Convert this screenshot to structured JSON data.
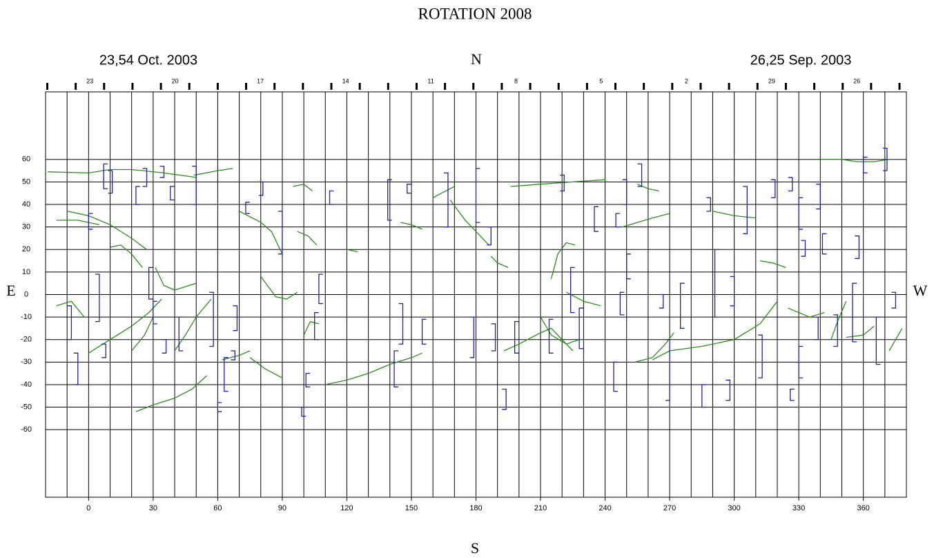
{
  "chart_data": {
    "type": "synoptic-map",
    "title": "ROTATION 2008",
    "start_date": "23,54 Oct. 2003",
    "end_date": "26,25 Sep. 2003",
    "north_label": "N",
    "south_label": "S",
    "east_label": "E",
    "west_label": "W",
    "xlim": [
      -20,
      380
    ],
    "ylim": [
      -90,
      90
    ],
    "xticks": [
      0,
      30,
      60,
      90,
      120,
      150,
      180,
      210,
      240,
      270,
      300,
      330,
      360
    ],
    "xgrid": [
      -10,
      0,
      10,
      20,
      30,
      40,
      50,
      60,
      70,
      80,
      90,
      100,
      110,
      120,
      130,
      140,
      150,
      160,
      170,
      180,
      190,
      200,
      210,
      220,
      230,
      240,
      250,
      260,
      270,
      280,
      290,
      300,
      310,
      320,
      330,
      340,
      350,
      360,
      370
    ],
    "yticks": [
      -60,
      -50,
      -40,
      -30,
      -20,
      -10,
      0,
      10,
      20,
      30,
      40,
      50,
      60
    ],
    "grid": true,
    "day_ticks": [
      -19.2,
      -6,
      7.2,
      20.4,
      33.6,
      46.8,
      60,
      73.2,
      86.4,
      99.6,
      112.8,
      126,
      139.2,
      152.4,
      165.6,
      178.8,
      192,
      205.2,
      218.4,
      231.6,
      244.8,
      258,
      271.2,
      284.4,
      297.6,
      310.8,
      324,
      337.2,
      350.4,
      363.6,
      376.8
    ],
    "day_labels": [
      {
        "value": 0.6,
        "label": "23"
      },
      {
        "value": 40.2,
        "label": "20"
      },
      {
        "value": 79.8,
        "label": "17"
      },
      {
        "value": 119.4,
        "label": "14"
      },
      {
        "value": 159,
        "label": "11"
      },
      {
        "value": 198.6,
        "label": "8"
      },
      {
        "value": 238.2,
        "label": "5"
      },
      {
        "value": 277.8,
        "label": "2"
      },
      {
        "value": 317.4,
        "label": "29"
      },
      {
        "value": 357,
        "label": "26"
      }
    ],
    "filament_color": "#2e8b1e",
    "bracket_color": "#1f1fa8",
    "filaments": [
      {
        "x": [
          -19,
          0,
          10,
          20,
          35,
          50
        ],
        "y": [
          54.5,
          54,
          55.5,
          55.5,
          54,
          52
        ]
      },
      {
        "x": [
          49,
          60,
          67
        ],
        "y": [
          53,
          55,
          56
        ]
      },
      {
        "x": [
          -10,
          0,
          10,
          20,
          27
        ],
        "y": [
          37,
          35,
          31,
          25,
          20
        ]
      },
      {
        "x": [
          -15,
          -5,
          5
        ],
        "y": [
          33,
          33,
          31
        ]
      },
      {
        "x": [
          10,
          15,
          20,
          25
        ],
        "y": [
          21,
          22,
          18,
          12
        ]
      },
      {
        "x": [
          0,
          10,
          20,
          28,
          34
        ],
        "y": [
          -26,
          -20,
          -14,
          -8,
          -2
        ]
      },
      {
        "x": [
          20,
          26,
          30
        ],
        "y": [
          -25,
          -18,
          -10
        ]
      },
      {
        "x": [
          31,
          35,
          40,
          50
        ],
        "y": [
          12,
          4,
          2,
          5
        ]
      },
      {
        "x": [
          40,
          45,
          50,
          57
        ],
        "y": [
          -25,
          -18,
          -10,
          -2
        ]
      },
      {
        "x": [
          22,
          30,
          40,
          48,
          55
        ],
        "y": [
          -52,
          -49,
          -46,
          -42,
          -36
        ]
      },
      {
        "x": [
          -15,
          -8,
          -2
        ],
        "y": [
          -5,
          -3,
          -10
        ]
      },
      {
        "x": [
          70,
          80,
          85,
          90
        ],
        "y": [
          37,
          32,
          28,
          18
        ]
      },
      {
        "x": [
          80,
          87,
          92,
          97
        ],
        "y": [
          8,
          -1,
          -2,
          1
        ]
      },
      {
        "x": [
          97,
          102,
          106
        ],
        "y": [
          28,
          26,
          22
        ]
      },
      {
        "x": [
          100,
          103,
          107
        ],
        "y": [
          -18,
          -12,
          -13
        ]
      },
      {
        "x": [
          110,
          120,
          130,
          140,
          150,
          155
        ],
        "y": [
          -40,
          -38,
          -35,
          -31,
          -28,
          -26
        ]
      },
      {
        "x": [
          62,
          70,
          75
        ],
        "y": [
          -29,
          -27,
          -25
        ]
      },
      {
        "x": [
          75,
          82,
          90
        ],
        "y": [
          -28,
          -33,
          -37
        ]
      },
      {
        "x": [
          120,
          125
        ],
        "y": [
          20,
          19
        ]
      },
      {
        "x": [
          145,
          150,
          155
        ],
        "y": [
          32,
          31,
          29
        ]
      },
      {
        "x": [
          168,
          175,
          180,
          186
        ],
        "y": [
          42,
          33,
          28,
          22
        ]
      },
      {
        "x": [
          187,
          190,
          195
        ],
        "y": [
          17,
          14,
          12
        ]
      },
      {
        "x": [
          193,
          200,
          210,
          215,
          218,
          222,
          225
        ],
        "y": [
          -25,
          -22,
          -17,
          -15,
          -18,
          -22,
          -25
        ]
      },
      {
        "x": [
          210,
          215,
          222,
          228
        ],
        "y": [
          -10,
          -18,
          -22,
          -20
        ]
      },
      {
        "x": [
          215,
          218,
          222,
          226
        ],
        "y": [
          7,
          18,
          23,
          22
        ]
      },
      {
        "x": [
          222,
          230,
          238
        ],
        "y": [
          1,
          -3,
          -5
        ]
      },
      {
        "x": [
          196,
          210,
          225,
          240
        ],
        "y": [
          48,
          49,
          50,
          51
        ]
      },
      {
        "x": [
          248,
          255,
          262,
          270
        ],
        "y": [
          30,
          32,
          34,
          36
        ]
      },
      {
        "x": [
          262,
          270,
          285,
          300,
          312,
          320
        ],
        "y": [
          -29,
          -25,
          -23,
          -20,
          -13,
          -3
        ]
      },
      {
        "x": [
          254,
          262,
          268,
          272
        ],
        "y": [
          -30,
          -28,
          -22,
          -17
        ]
      },
      {
        "x": [
          340,
          350,
          357,
          365,
          372
        ],
        "y": [
          60,
          60,
          59,
          59,
          60
        ]
      },
      {
        "x": [
          352,
          360,
          365
        ],
        "y": [
          -19,
          -18,
          -14
        ]
      },
      {
        "x": [
          372,
          378
        ],
        "y": [
          -25,
          -15
        ]
      },
      {
        "x": [
          345,
          348,
          352
        ],
        "y": [
          -20,
          -12,
          -3
        ]
      },
      {
        "x": [
          325,
          335,
          342
        ],
        "y": [
          -6,
          -10,
          -8
        ]
      },
      {
        "x": [
          312,
          318,
          324
        ],
        "y": [
          15,
          14,
          12
        ]
      },
      {
        "x": [
          290,
          300,
          310
        ],
        "y": [
          37,
          35,
          34
        ]
      },
      {
        "x": [
          255,
          260,
          265
        ],
        "y": [
          49,
          47,
          46
        ]
      },
      {
        "x": [
          160,
          170
        ],
        "y": [
          43,
          48
        ]
      },
      {
        "x": [
          95,
          100,
          104
        ],
        "y": [
          48,
          49,
          46
        ]
      }
    ],
    "brackets": [
      {
        "x": 0,
        "y1": 29,
        "y2": 36,
        "spine": "left"
      },
      {
        "x": 7,
        "y1": 47,
        "y2": 58,
        "spine": "left"
      },
      {
        "x": 11,
        "y1": 45,
        "y2": 55,
        "spine": "right"
      },
      {
        "x": 22,
        "y1": 40,
        "y2": 48,
        "spine": "left"
      },
      {
        "x": 27,
        "y1": 48,
        "y2": 56,
        "spine": "right"
      },
      {
        "x": 35,
        "y1": 52,
        "y2": 57,
        "spine": "right"
      },
      {
        "x": 38,
        "y1": 42,
        "y2": 48,
        "spine": "left"
      },
      {
        "x": 50,
        "y1": 40,
        "y2": 57,
        "spine": "right"
      },
      {
        "x": -8,
        "y1": -20,
        "y2": -5,
        "spine": "right"
      },
      {
        "x": 5,
        "y1": -12,
        "y2": 9,
        "spine": "right"
      },
      {
        "x": -5,
        "y1": -40,
        "y2": -26,
        "spine": "right"
      },
      {
        "x": 8,
        "y1": -28,
        "y2": -22,
        "spine": "right"
      },
      {
        "x": 28,
        "y1": -2,
        "y2": 12,
        "spine": "left"
      },
      {
        "x": 30,
        "y1": -13,
        "y2": -3,
        "spine": "left"
      },
      {
        "x": 36,
        "y1": -26,
        "y2": -20,
        "spine": "right"
      },
      {
        "x": 42,
        "y1": -25,
        "y2": -10,
        "spine": "left"
      },
      {
        "x": 58,
        "y1": -23,
        "y2": 1,
        "spine": "right"
      },
      {
        "x": 69,
        "y1": -16,
        "y2": -5,
        "spine": "right"
      },
      {
        "x": 63,
        "y1": -43,
        "y2": -28,
        "spine": "left"
      },
      {
        "x": 68,
        "y1": -29,
        "y2": -25,
        "spine": "right"
      },
      {
        "x": 60,
        "y1": -52,
        "y2": -48,
        "spine": "left"
      },
      {
        "x": 73,
        "y1": 36,
        "y2": 41,
        "spine": "left"
      },
      {
        "x": 90,
        "y1": 18,
        "y2": 37,
        "spine": "right"
      },
      {
        "x": 81,
        "y1": 44,
        "y2": 50,
        "spine": "right"
      },
      {
        "x": 107,
        "y1": -4,
        "y2": 9,
        "spine": "left"
      },
      {
        "x": 105,
        "y1": -20,
        "y2": -8,
        "spine": "left"
      },
      {
        "x": 101,
        "y1": -41,
        "y2": -35,
        "spine": "left"
      },
      {
        "x": 99,
        "y1": -54,
        "y2": -50,
        "spine": "left"
      },
      {
        "x": 112,
        "y1": 40,
        "y2": 46,
        "spine": "left"
      },
      {
        "x": 139,
        "y1": 33,
        "y2": 51,
        "spine": "left"
      },
      {
        "x": 148,
        "y1": 45,
        "y2": 49,
        "spine": "left"
      },
      {
        "x": 146,
        "y1": -22,
        "y2": -4,
        "spine": "right"
      },
      {
        "x": 142,
        "y1": -41,
        "y2": -25,
        "spine": "left"
      },
      {
        "x": 155,
        "y1": -22,
        "y2": -11,
        "spine": "left"
      },
      {
        "x": 167,
        "y1": 30,
        "y2": 54,
        "spine": "right"
      },
      {
        "x": 179,
        "y1": -28,
        "y2": -10,
        "spine": "right"
      },
      {
        "x": 180,
        "y1": 32,
        "y2": 56,
        "spine": "left"
      },
      {
        "x": 187,
        "y1": 22,
        "y2": 30,
        "spine": "right"
      },
      {
        "x": 189,
        "y1": -25,
        "y2": -13,
        "spine": "right"
      },
      {
        "x": 194,
        "y1": -51,
        "y2": -42,
        "spine": "right"
      },
      {
        "x": 198,
        "y1": -26,
        "y2": -12,
        "spine": "left"
      },
      {
        "x": 221,
        "y1": 46,
        "y2": 53,
        "spine": "right"
      },
      {
        "x": 214,
        "y1": -26,
        "y2": -11,
        "spine": "left"
      },
      {
        "x": 228,
        "y1": -24,
        "y2": -6,
        "spine": "left"
      },
      {
        "x": 224,
        "y1": -8,
        "y2": 12,
        "spine": "left"
      },
      {
        "x": 235,
        "y1": 28,
        "y2": 39,
        "spine": "left"
      },
      {
        "x": 244,
        "y1": -43,
        "y2": -30,
        "spine": "left"
      },
      {
        "x": 250,
        "y1": 40,
        "y2": 51,
        "spine": "right"
      },
      {
        "x": 257,
        "y1": 48,
        "y2": 58,
        "spine": "right"
      },
      {
        "x": 247,
        "y1": -9,
        "y2": 1,
        "spine": "left"
      },
      {
        "x": 250,
        "y1": 7,
        "y2": 18,
        "spine": "left"
      },
      {
        "x": 245,
        "y1": 30,
        "y2": 36,
        "spine": "left"
      },
      {
        "x": 267,
        "y1": -6,
        "y2": 0,
        "spine": "right"
      },
      {
        "x": 270,
        "y1": -47,
        "y2": -20,
        "spine": "right"
      },
      {
        "x": 275,
        "y1": -15,
        "y2": 5,
        "spine": "left"
      },
      {
        "x": 285,
        "y1": -50,
        "y2": -40,
        "spine": "left"
      },
      {
        "x": 289,
        "y1": 37,
        "y2": 43,
        "spine": "right"
      },
      {
        "x": 291,
        "y1": -10,
        "y2": 20,
        "spine": "left"
      },
      {
        "x": 300,
        "y1": -5,
        "y2": 8,
        "spine": "right"
      },
      {
        "x": 298,
        "y1": -47,
        "y2": -38,
        "spine": "right"
      },
      {
        "x": 306,
        "y1": 27,
        "y2": 48,
        "spine": "right"
      },
      {
        "x": 313,
        "y1": -37,
        "y2": -18,
        "spine": "right"
      },
      {
        "x": 319,
        "y1": 43,
        "y2": 51,
        "spine": "right"
      },
      {
        "x": 327,
        "y1": 46,
        "y2": 52,
        "spine": "right"
      },
      {
        "x": 330,
        "y1": 29,
        "y2": 43,
        "spine": "left"
      },
      {
        "x": 333,
        "y1": 17,
        "y2": 24,
        "spine": "right"
      },
      {
        "x": 330,
        "y1": -37,
        "y2": -23,
        "spine": "left"
      },
      {
        "x": 326,
        "y1": -47,
        "y2": -42,
        "spine": "left"
      },
      {
        "x": 339,
        "y1": -20,
        "y2": -10,
        "spine": "right"
      },
      {
        "x": 340,
        "y1": 38,
        "y2": 49,
        "spine": "right"
      },
      {
        "x": 341,
        "y1": 18,
        "y2": 27,
        "spine": "left"
      },
      {
        "x": 348,
        "y1": -23,
        "y2": -9,
        "spine": "right"
      },
      {
        "x": 355,
        "y1": -21,
        "y2": 5,
        "spine": "left"
      },
      {
        "x": 358,
        "y1": 16,
        "y2": 26,
        "spine": "right"
      },
      {
        "x": 360,
        "y1": 54,
        "y2": 61,
        "spine": "left"
      },
      {
        "x": 371,
        "y1": 55,
        "y2": 65,
        "spine": "right"
      },
      {
        "x": 366,
        "y1": -31,
        "y2": -10,
        "spine": "left"
      },
      {
        "x": 375,
        "y1": -6,
        "y2": 1,
        "spine": "right"
      }
    ]
  }
}
